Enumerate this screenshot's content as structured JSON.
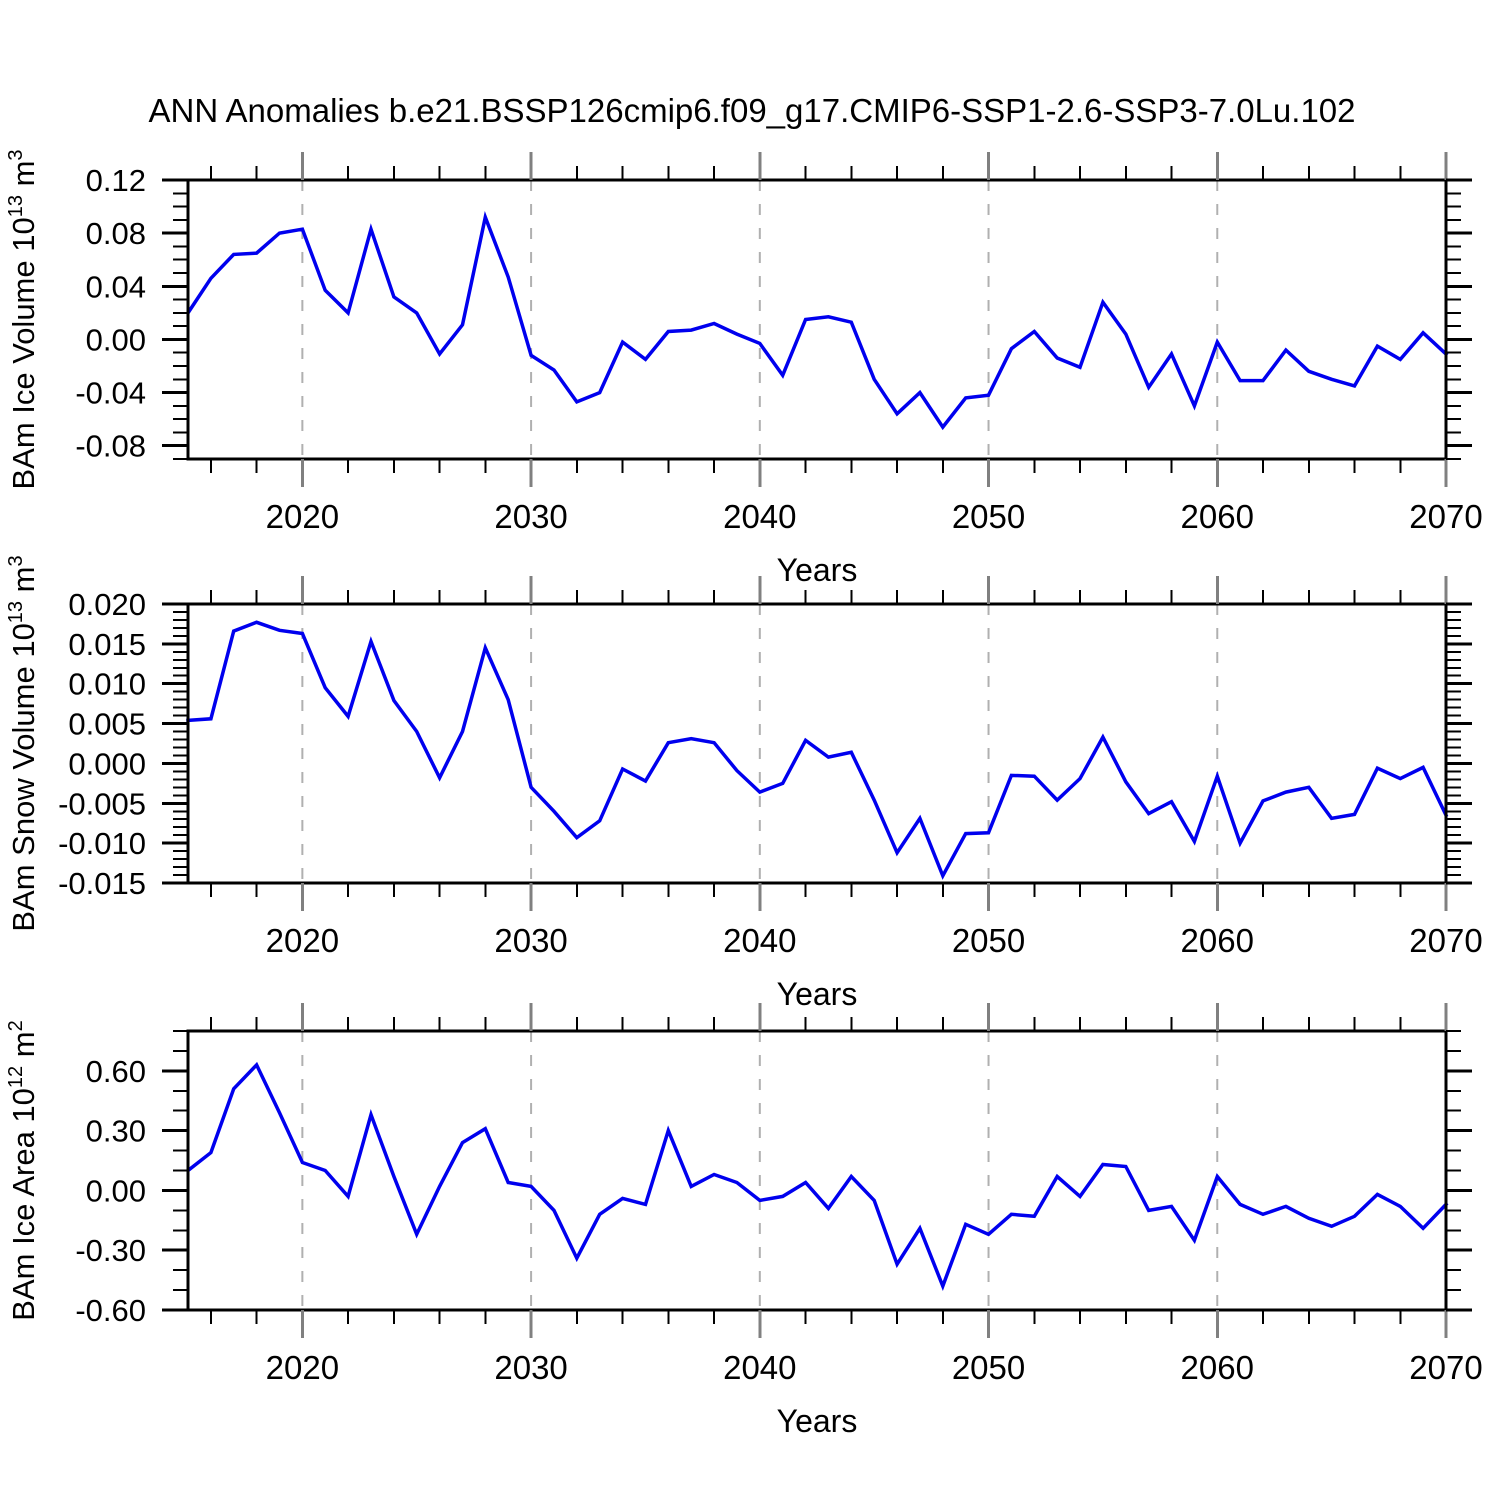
{
  "title": "ANN Anomalies b.e21.BSSP126cmip6.f09_g17.CMIP6-SSP1-2.6-SSP3-7.0Lu.102",
  "colors": {
    "series_line": "#0000EE",
    "gridline": "#B0B0B0",
    "decade_tick": "#808080",
    "axis": "#000000",
    "text": "#000000",
    "background": "#FFFFFF"
  },
  "chart_data": {
    "type": "line",
    "x_label": "Years",
    "x_range": [
      2015,
      2070
    ],
    "x_major_ticks": [
      2020,
      2030,
      2040,
      2050,
      2060,
      2070
    ],
    "x_minor_step": 2,
    "x_gridlines": [
      2020,
      2030,
      2040,
      2050,
      2060
    ],
    "grid": "vertical-dashed",
    "legend": "none",
    "years": [
      2015,
      2016,
      2017,
      2018,
      2019,
      2020,
      2021,
      2022,
      2023,
      2024,
      2025,
      2026,
      2027,
      2028,
      2029,
      2030,
      2031,
      2032,
      2033,
      2034,
      2035,
      2036,
      2037,
      2038,
      2039,
      2040,
      2041,
      2042,
      2043,
      2044,
      2045,
      2046,
      2047,
      2048,
      2049,
      2050,
      2051,
      2052,
      2053,
      2054,
      2055,
      2056,
      2057,
      2058,
      2059,
      2060,
      2061,
      2062,
      2063,
      2064,
      2065,
      2066,
      2067,
      2068,
      2069,
      2070
    ],
    "panels": [
      {
        "id": "ice-volume",
        "y_label_text": "BAm Ice Volume 10^13 m^3",
        "y_label_parts": [
          "BAm Ice Volume 10",
          "13",
          " m",
          "3"
        ],
        "y_range": [
          -0.09,
          0.12
        ],
        "y_major_ticks": [
          0.12,
          0.08,
          0.04,
          0.0,
          -0.04,
          -0.08
        ],
        "y_tick_labels": [
          "0.12",
          "0.08",
          "0.04",
          "0.00",
          "-0.04",
          "-0.08"
        ],
        "y_minor_step": 0.01,
        "values": [
          0.02,
          0.046,
          0.064,
          0.065,
          0.08,
          0.083,
          0.037,
          0.02,
          0.083,
          0.032,
          0.02,
          -0.011,
          0.011,
          0.092,
          0.047,
          -0.012,
          -0.023,
          -0.047,
          -0.04,
          -0.002,
          -0.015,
          0.006,
          0.007,
          0.012,
          0.004,
          -0.003,
          -0.027,
          0.015,
          0.017,
          0.013,
          -0.03,
          -0.056,
          -0.04,
          -0.066,
          -0.044,
          -0.042,
          -0.007,
          0.006,
          -0.014,
          -0.021,
          0.028,
          0.004,
          -0.036,
          -0.011,
          -0.05,
          -0.002,
          -0.031,
          -0.031,
          -0.008,
          -0.024,
          -0.03,
          -0.035,
          -0.005,
          -0.015,
          0.005,
          -0.011
        ]
      },
      {
        "id": "snow-volume",
        "y_label_text": "BAm Snow Volume 10^13 m^3",
        "y_label_parts": [
          "BAm Snow Volume 10",
          "13",
          " m",
          "3"
        ],
        "y_range": [
          -0.015,
          0.02
        ],
        "y_major_ticks": [
          0.02,
          0.015,
          0.01,
          0.005,
          0.0,
          -0.005,
          -0.01,
          -0.015
        ],
        "y_tick_labels": [
          "0.020",
          "0.015",
          "0.010",
          "0.005",
          "0.000",
          "-0.005",
          "-0.010",
          "-0.015"
        ],
        "y_minor_step": 0.001,
        "values": [
          0.0054,
          0.0056,
          0.0166,
          0.0177,
          0.0167,
          0.0163,
          0.0095,
          0.0059,
          0.0153,
          0.0079,
          0.004,
          -0.0018,
          0.004,
          0.0145,
          0.008,
          -0.003,
          -0.006,
          -0.0093,
          -0.0072,
          -0.0007,
          -0.0022,
          0.0026,
          0.0031,
          0.0026,
          -0.0009,
          -0.0036,
          -0.0025,
          0.0029,
          0.0008,
          0.0014,
          -0.0046,
          -0.0112,
          -0.0069,
          -0.0141,
          -0.0088,
          -0.0087,
          -0.0015,
          -0.0016,
          -0.0046,
          -0.0019,
          0.0033,
          -0.0023,
          -0.0063,
          -0.0048,
          -0.0098,
          -0.0016,
          -0.01,
          -0.0047,
          -0.0036,
          -0.003,
          -0.0069,
          -0.0064,
          -0.0006,
          -0.0019,
          -0.0005,
          -0.0065
        ]
      },
      {
        "id": "ice-area",
        "y_label_text": "BAm Ice Area 10^12 m^2",
        "y_label_parts": [
          "BAm Ice Area 10",
          "12",
          " m",
          "2"
        ],
        "y_range": [
          -0.6,
          0.8
        ],
        "y_major_ticks": [
          0.6,
          0.3,
          0.0,
          -0.3,
          -0.6
        ],
        "y_tick_labels": [
          "0.60",
          "0.30",
          "0.00",
          "-0.30",
          "-0.60"
        ],
        "y_minor_step": 0.1,
        "values": [
          0.1,
          0.19,
          0.51,
          0.63,
          0.39,
          0.14,
          0.1,
          -0.03,
          0.38,
          0.07,
          -0.22,
          0.02,
          0.24,
          0.31,
          0.04,
          0.02,
          -0.1,
          -0.34,
          -0.12,
          -0.04,
          -0.07,
          0.3,
          0.02,
          0.08,
          0.04,
          -0.05,
          -0.03,
          0.04,
          -0.09,
          0.07,
          -0.05,
          -0.37,
          -0.19,
          -0.48,
          -0.17,
          -0.22,
          -0.12,
          -0.13,
          0.07,
          -0.03,
          0.13,
          0.12,
          -0.1,
          -0.08,
          -0.25,
          0.07,
          -0.07,
          -0.12,
          -0.08,
          -0.14,
          -0.18,
          -0.13,
          -0.02,
          -0.08,
          -0.19,
          -0.07
        ]
      }
    ]
  }
}
